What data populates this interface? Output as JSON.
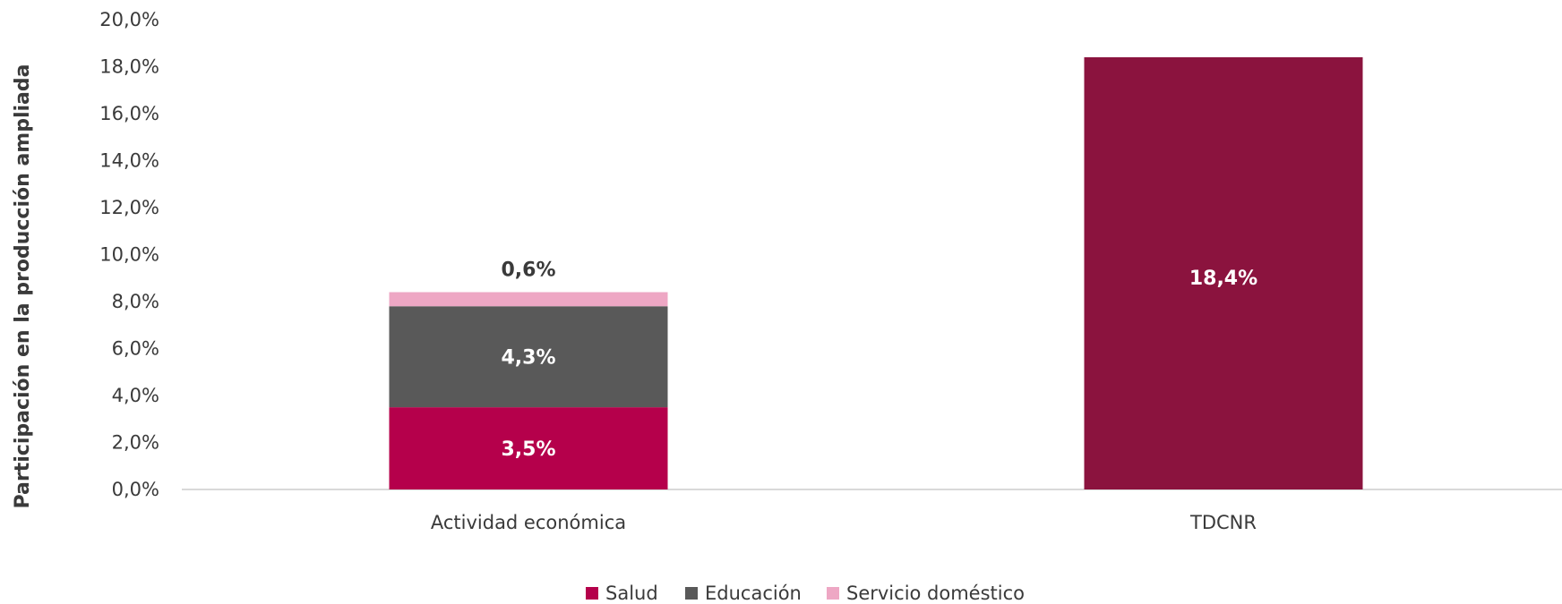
{
  "chart_data": {
    "type": "bar",
    "stacked": true,
    "categories": [
      "Actividad económica",
      "TDCNR"
    ],
    "ylabel": "Participación en la producción ampliada",
    "xlabel": "",
    "ylim": [
      0,
      20
    ],
    "yticks": [
      "0,0%",
      "2,0%",
      "4,0%",
      "6,0%",
      "8,0%",
      "10,0%",
      "12,0%",
      "14,0%",
      "16,0%",
      "18,0%",
      "20,0%"
    ],
    "grid": false,
    "legend_position": "bottom",
    "series": [
      {
        "name": "Salud",
        "color": "#b5004b",
        "values": [
          3.5,
          null
        ],
        "labels": [
          "3,5%",
          ""
        ],
        "label_color": "#ffffff"
      },
      {
        "name": "Educación",
        "color": "#595959",
        "values": [
          4.3,
          null
        ],
        "labels": [
          "4,3%",
          ""
        ],
        "label_color": "#ffffff"
      },
      {
        "name": "Servicio doméstico",
        "color": "#eea7c4",
        "values": [
          0.6,
          null
        ],
        "labels": [
          "0,6%",
          ""
        ],
        "label_color": "#3a3a3a",
        "label_position": "above"
      }
    ],
    "single_bars": [
      {
        "category": "TDCNR",
        "value": 18.4,
        "label": "18,4%",
        "color": "#8b133e",
        "label_color": "#ffffff"
      }
    ]
  }
}
